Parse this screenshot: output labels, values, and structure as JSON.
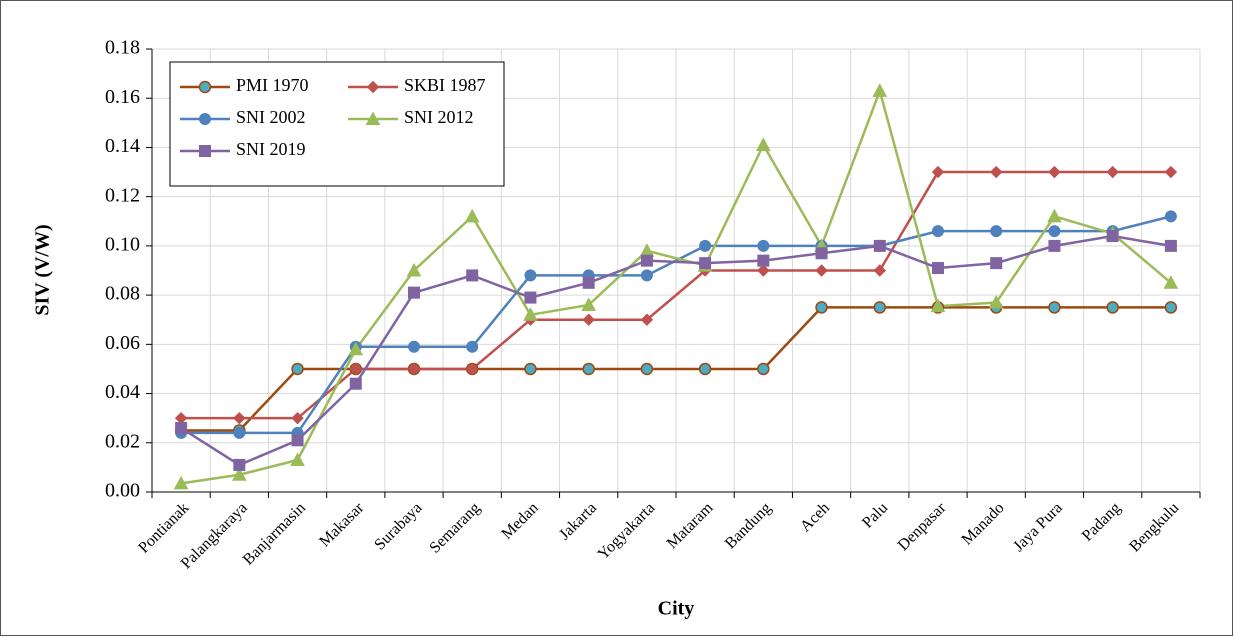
{
  "chart_data": {
    "type": "line",
    "x_label": "City",
    "y_label": "SIV (V/W)",
    "categories": [
      "Pontianak",
      "Palangkaraya",
      "Banjarmasin",
      "Makasar",
      "Surabaya",
      "Semarang",
      "Medan",
      "Jakarta",
      "Yogyakarta",
      "Mataram",
      "Bandung",
      "Aceh",
      "Palu",
      "Denpasar",
      "Manado",
      "Jaya Pura",
      "Padang",
      "Bengkulu"
    ],
    "series": [
      {
        "name": "PMI 1970",
        "color": "#9c4a0f",
        "marker": "circle",
        "marker_color": "#4bacc6",
        "values": [
          0.025,
          0.025,
          0.05,
          0.05,
          0.05,
          0.05,
          0.05,
          0.05,
          0.05,
          0.05,
          0.05,
          0.075,
          0.075,
          0.075,
          0.075,
          0.075,
          0.075,
          0.075
        ]
      },
      {
        "name": "SKBI 1987",
        "color": "#c0504d",
        "marker": "diamond",
        "marker_color": "#c0504d",
        "values": [
          0.03,
          0.03,
          0.03,
          0.05,
          0.05,
          0.05,
          0.07,
          0.07,
          0.07,
          0.09,
          0.09,
          0.09,
          0.09,
          0.13,
          0.13,
          0.13,
          0.13,
          0.13
        ]
      },
      {
        "name": "SNI 2002",
        "color": "#4f81bd",
        "marker": "circle",
        "marker_color": "#4f81bd",
        "values": [
          0.024,
          0.024,
          0.024,
          0.059,
          0.059,
          0.059,
          0.088,
          0.088,
          0.088,
          0.1,
          0.1,
          0.1,
          0.1,
          0.106,
          0.106,
          0.106,
          0.106,
          0.112
        ]
      },
      {
        "name": "SNI 2012",
        "color": "#9bbb59",
        "marker": "triangle",
        "marker_color": "#9bbb59",
        "values": [
          0.0035,
          0.007,
          0.013,
          0.058,
          0.09,
          0.112,
          0.072,
          0.076,
          0.098,
          0.092,
          0.141,
          0.1,
          0.163,
          0.0755,
          0.077,
          0.112,
          0.105,
          0.085
        ]
      },
      {
        "name": "SNI 2019",
        "color": "#8064a2",
        "marker": "square",
        "marker_color": "#8064a2",
        "values": [
          0.026,
          0.011,
          0.021,
          0.044,
          0.081,
          0.088,
          0.079,
          0.085,
          0.094,
          0.093,
          0.094,
          0.097,
          0.1,
          0.091,
          0.093,
          0.1,
          0.104,
          0.1
        ]
      }
    ],
    "ylim": [
      0,
      0.18
    ],
    "yticks": [
      {
        "value": 0,
        "label": "0.00"
      },
      {
        "value": 0.02,
        "label": "0.02"
      },
      {
        "value": 0.04,
        "label": "0.04"
      },
      {
        "value": 0.06,
        "label": "0.06"
      },
      {
        "value": 0.08,
        "label": "0.08"
      },
      {
        "value": 0.1,
        "label": "0.10"
      },
      {
        "value": 0.12,
        "label": "0.12"
      },
      {
        "value": 0.14,
        "label": "0.14"
      },
      {
        "value": 0.16,
        "label": "0.16"
      },
      {
        "value": 0.18,
        "label": "0.18"
      }
    ],
    "grid": true,
    "legend_position": "upper left"
  }
}
